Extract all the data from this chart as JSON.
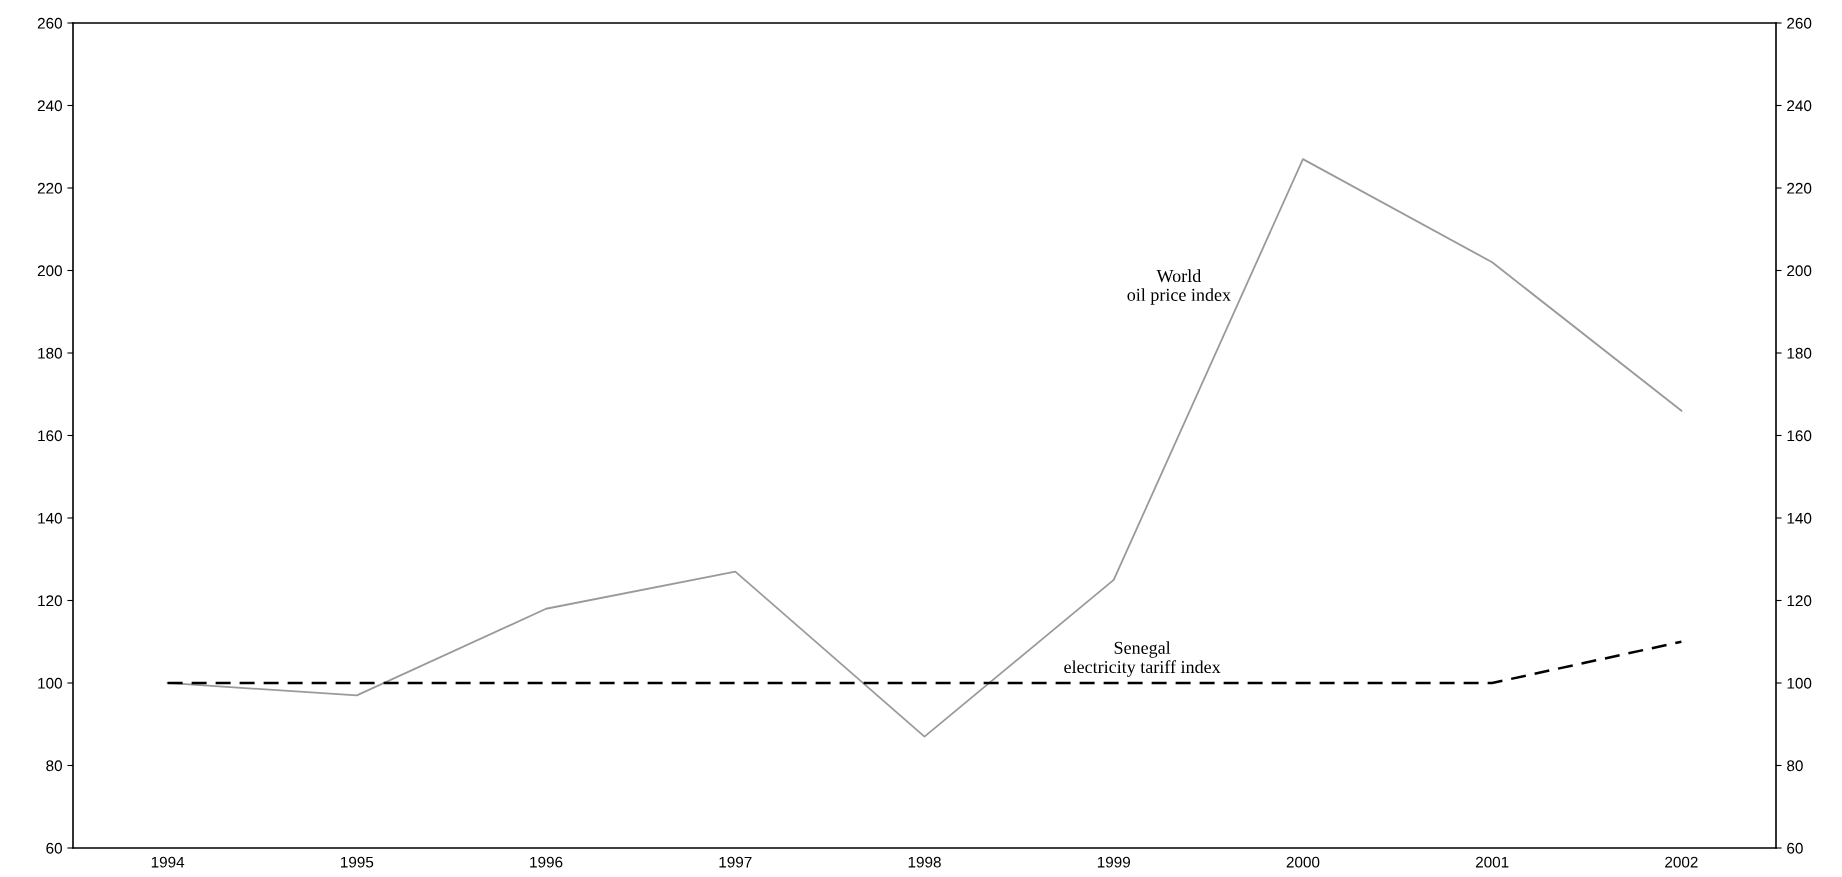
{
  "chart_data": {
    "type": "line",
    "categories": [
      "1994",
      "1995",
      "1996",
      "1997",
      "1998",
      "1999",
      "2000",
      "2001",
      "2002"
    ],
    "series": [
      {
        "name": "World\noil price index",
        "color": "#9a9a9a",
        "line_style": "solid",
        "values": [
          100,
          97,
          118,
          127,
          87,
          125,
          227,
          202,
          166
        ]
      },
      {
        "name": "Senegal\nelectricity tariff index",
        "color": "#000000",
        "line_style": "dashed",
        "values": [
          100,
          100,
          100,
          100,
          100,
          100,
          100,
          100,
          110
        ]
      }
    ],
    "ylim": [
      60,
      260
    ],
    "yticks": [
      60,
      80,
      100,
      120,
      140,
      160,
      180,
      200,
      220,
      240,
      260
    ],
    "y2lim": [
      60,
      260
    ],
    "y2ticks": [
      60,
      80,
      100,
      120,
      140,
      160,
      180,
      200,
      220,
      240,
      260
    ],
    "grid": false,
    "legend": false,
    "marker": "none"
  }
}
